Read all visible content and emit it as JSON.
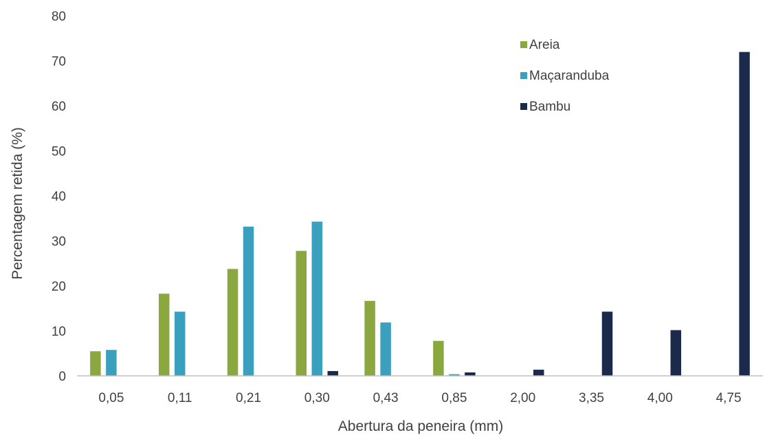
{
  "chart_data": {
    "type": "bar",
    "xlabel": "Abertura da peneira (mm)",
    "ylabel": "Percentagem retida (%)",
    "categories": [
      "0,05",
      "0,11",
      "0,21",
      "0,30",
      "0,43",
      "0,85",
      "2,00",
      "3,35",
      "4,00",
      "4,75"
    ],
    "ylim": [
      0,
      80
    ],
    "yticks": [
      "0",
      "10",
      "20",
      "30",
      "40",
      "50",
      "60",
      "70",
      "80"
    ],
    "grid": false,
    "legend_position": "top-right",
    "series": [
      {
        "name": "Areia",
        "color": "#8aa83f",
        "values": [
          5.5,
          18.3,
          23.8,
          27.8,
          16.7,
          7.8,
          0,
          0,
          0,
          0
        ]
      },
      {
        "name": "Maçaranduba",
        "color": "#3aa0bd",
        "values": [
          5.8,
          14.3,
          33.2,
          34.3,
          11.9,
          0.4,
          0,
          0,
          0,
          0
        ]
      },
      {
        "name": "Bambu",
        "color": "#1b2a4a",
        "values": [
          0,
          0,
          0,
          1.1,
          0,
          0.8,
          1.4,
          14.3,
          10.2,
          72.0
        ]
      }
    ]
  }
}
